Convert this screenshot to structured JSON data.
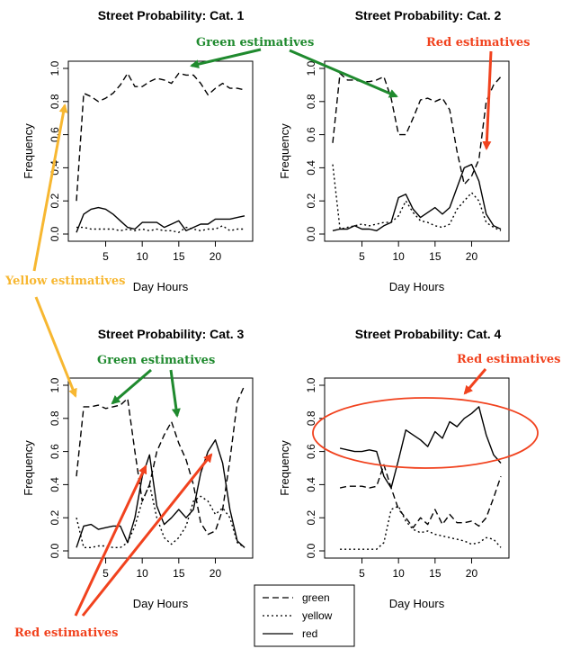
{
  "chart_data": [
    {
      "type": "line",
      "title": "Street Probability: Cat. 1",
      "xlabel": "Day Hours",
      "ylabel": "Frequency",
      "xlim": [
        1,
        24
      ],
      "ylim": [
        0,
        1
      ],
      "xticks": [
        "5",
        "10",
        "15",
        "20"
      ],
      "yticks": [
        "0.0",
        "0.2",
        "0.4",
        "0.6",
        "0.8",
        "1.0"
      ],
      "x": [
        1,
        2,
        3,
        4,
        5,
        6,
        7,
        8,
        9,
        10,
        11,
        12,
        13,
        14,
        15,
        16,
        17,
        18,
        19,
        20,
        21,
        22,
        23,
        24
      ],
      "series": [
        {
          "name": "green",
          "style": "dashed",
          "values": [
            0.2,
            0.85,
            0.83,
            0.8,
            0.82,
            0.85,
            0.9,
            0.97,
            0.89,
            0.89,
            0.92,
            0.94,
            0.93,
            0.91,
            0.97,
            0.96,
            0.96,
            0.91,
            0.84,
            0.88,
            0.91,
            0.88,
            0.88,
            0.87
          ]
        },
        {
          "name": "yellow",
          "style": "dotted",
          "values": [
            0.04,
            0.04,
            0.03,
            0.03,
            0.03,
            0.03,
            0.02,
            0.03,
            0.02,
            0.03,
            0.02,
            0.03,
            0.02,
            0.02,
            0.01,
            0.04,
            0.03,
            0.02,
            0.03,
            0.03,
            0.05,
            0.02,
            0.03,
            0.03
          ]
        },
        {
          "name": "red",
          "style": "solid",
          "values": [
            0.01,
            0.12,
            0.15,
            0.16,
            0.15,
            0.12,
            0.08,
            0.04,
            0.03,
            0.07,
            0.07,
            0.07,
            0.04,
            0.06,
            0.08,
            0.02,
            0.04,
            0.06,
            0.06,
            0.09,
            0.09,
            0.09,
            0.1,
            0.11
          ]
        }
      ]
    },
    {
      "type": "line",
      "title": "Street Probability: Cat. 2",
      "xlabel": "Day Hours",
      "ylabel": "Frequency",
      "xlim": [
        1,
        24
      ],
      "ylim": [
        0,
        1
      ],
      "xticks": [
        "5",
        "10",
        "15",
        "20"
      ],
      "yticks": [
        "0.0",
        "0.2",
        "0.4",
        "0.6",
        "0.8",
        "1.0"
      ],
      "x": [
        1,
        2,
        3,
        4,
        5,
        6,
        7,
        8,
        9,
        10,
        11,
        12,
        13,
        14,
        15,
        16,
        17,
        18,
        19,
        20,
        21,
        22,
        23,
        24
      ],
      "series": [
        {
          "name": "green",
          "style": "dashed",
          "values": [
            0.55,
            0.97,
            0.93,
            0.93,
            0.92,
            0.92,
            0.93,
            0.95,
            0.82,
            0.6,
            0.6,
            0.7,
            0.81,
            0.82,
            0.8,
            0.82,
            0.75,
            0.5,
            0.3,
            0.35,
            0.45,
            0.8,
            0.9,
            0.95
          ]
        },
        {
          "name": "yellow",
          "style": "dotted",
          "values": [
            0.42,
            0.03,
            0.04,
            0.05,
            0.06,
            0.05,
            0.06,
            0.07,
            0.07,
            0.11,
            0.2,
            0.13,
            0.08,
            0.07,
            0.05,
            0.04,
            0.06,
            0.15,
            0.2,
            0.25,
            0.2,
            0.07,
            0.04,
            0.02
          ]
        },
        {
          "name": "red",
          "style": "solid",
          "values": [
            0.02,
            0.03,
            0.03,
            0.05,
            0.03,
            0.03,
            0.02,
            0.05,
            0.07,
            0.22,
            0.24,
            0.15,
            0.1,
            0.13,
            0.16,
            0.12,
            0.16,
            0.28,
            0.4,
            0.42,
            0.32,
            0.12,
            0.05,
            0.03
          ]
        }
      ]
    },
    {
      "type": "line",
      "title": "Street Probability: Cat. 3",
      "xlabel": "Day Hours",
      "ylabel": "Frequency",
      "xlim": [
        1,
        24
      ],
      "ylim": [
        0,
        1
      ],
      "xticks": [
        "5",
        "10",
        "15",
        "20"
      ],
      "yticks": [
        "0.0",
        "0.2",
        "0.4",
        "0.6",
        "0.8",
        "1.0"
      ],
      "x": [
        1,
        2,
        3,
        4,
        5,
        6,
        7,
        8,
        9,
        10,
        11,
        12,
        13,
        14,
        15,
        16,
        17,
        18,
        19,
        20,
        21,
        22,
        23,
        24
      ],
      "series": [
        {
          "name": "green",
          "style": "dashed",
          "values": [
            0.45,
            0.87,
            0.87,
            0.88,
            0.86,
            0.87,
            0.88,
            0.92,
            0.6,
            0.3,
            0.4,
            0.6,
            0.7,
            0.78,
            0.65,
            0.55,
            0.4,
            0.17,
            0.1,
            0.12,
            0.25,
            0.55,
            0.9,
            1.0
          ]
        },
        {
          "name": "yellow",
          "style": "dotted",
          "values": [
            0.2,
            0.02,
            0.02,
            0.03,
            0.03,
            0.02,
            0.02,
            0.05,
            0.15,
            0.3,
            0.4,
            0.2,
            0.08,
            0.04,
            0.08,
            0.15,
            0.3,
            0.33,
            0.3,
            0.22,
            0.26,
            0.2,
            0.05,
            0.02
          ]
        },
        {
          "name": "red",
          "style": "solid",
          "values": [
            0.02,
            0.15,
            0.16,
            0.13,
            0.14,
            0.15,
            0.15,
            0.05,
            0.2,
            0.45,
            0.58,
            0.27,
            0.16,
            0.2,
            0.25,
            0.2,
            0.25,
            0.47,
            0.6,
            0.67,
            0.53,
            0.25,
            0.06,
            0.02
          ]
        }
      ]
    },
    {
      "type": "line",
      "title": "Street Probability: Cat. 4",
      "xlabel": "Day Hours",
      "ylabel": "Frequency",
      "xlim": [
        1,
        24
      ],
      "ylim": [
        0,
        1
      ],
      "xticks": [
        "5",
        "10",
        "15",
        "20"
      ],
      "yticks": [
        "0.0",
        "0.2",
        "0.4",
        "0.6",
        "0.8",
        "1.0"
      ],
      "x": [
        2,
        3,
        4,
        5,
        6,
        7,
        8,
        9,
        10,
        11,
        12,
        13,
        14,
        15,
        16,
        17,
        18,
        19,
        20,
        21,
        22,
        23,
        24
      ],
      "series": [
        {
          "name": "green",
          "style": "dashed",
          "values": [
            0.38,
            0.39,
            0.39,
            0.39,
            0.38,
            0.39,
            0.52,
            0.38,
            0.25,
            0.2,
            0.14,
            0.2,
            0.16,
            0.25,
            0.16,
            0.22,
            0.17,
            0.17,
            0.18,
            0.15,
            0.2,
            0.32,
            0.45
          ]
        },
        {
          "name": "yellow",
          "style": "dotted",
          "values": [
            0.01,
            0.01,
            0.01,
            0.01,
            0.01,
            0.01,
            0.05,
            0.25,
            0.27,
            0.18,
            0.13,
            0.11,
            0.12,
            0.1,
            0.09,
            0.08,
            0.07,
            0.06,
            0.04,
            0.05,
            0.08,
            0.07,
            0.02
          ]
        },
        {
          "name": "red",
          "style": "solid",
          "values": [
            0.62,
            0.61,
            0.6,
            0.6,
            0.61,
            0.6,
            0.45,
            0.38,
            0.55,
            0.73,
            0.7,
            0.67,
            0.63,
            0.72,
            0.68,
            0.78,
            0.75,
            0.8,
            0.83,
            0.87,
            0.7,
            0.58,
            0.53
          ]
        }
      ]
    }
  ],
  "legend": {
    "entries": [
      {
        "label": "green",
        "style": "dashed"
      },
      {
        "label": "yellow",
        "style": "dotted"
      },
      {
        "label": "red",
        "style": "solid"
      }
    ],
    "placement": "bottom-center"
  },
  "annotations": {
    "colors": {
      "green": "#1f8a2e",
      "yellow": "#f7b731",
      "red": "#f1421e"
    },
    "green_1": "Green estimatives",
    "red_1": "Red estimatives",
    "yellow_1": "Yellow estimatives",
    "green_2": "Green estimatives",
    "red_2": "Red estimatives",
    "red_3": "Red estimatives"
  }
}
